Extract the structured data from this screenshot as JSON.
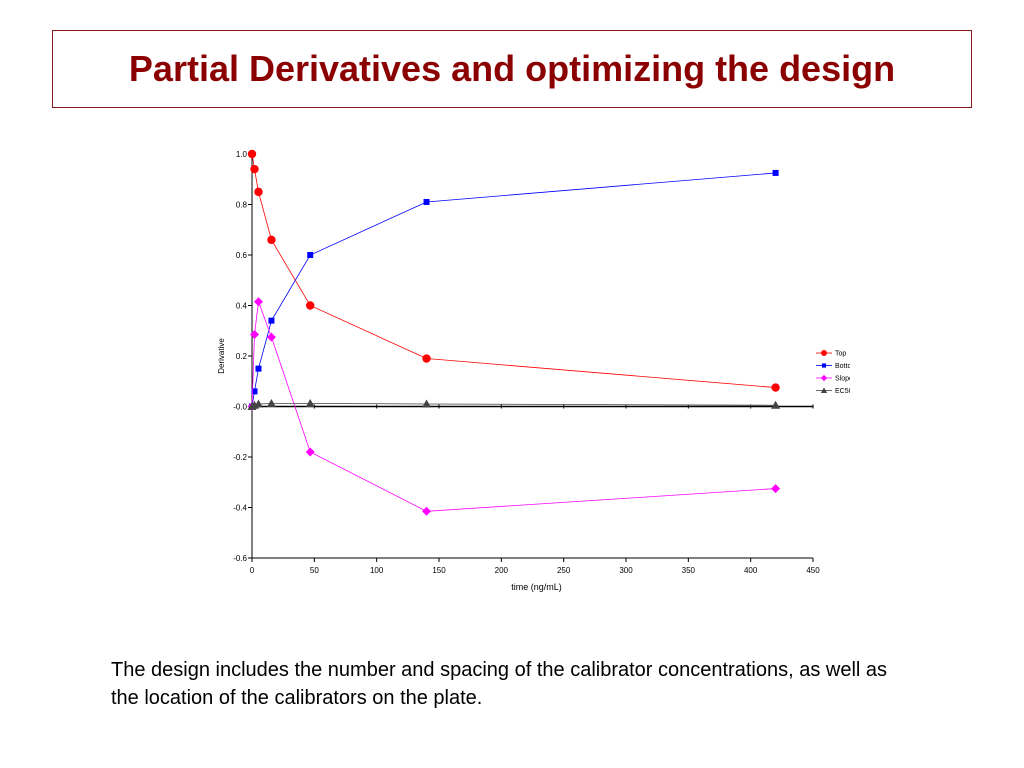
{
  "slide": {
    "title": "Partial Derivatives and optimizing the design",
    "caption": "The design includes the number and spacing of the calibrator concentrations, as well as the location of the calibrators on the plate."
  },
  "chart_data": {
    "type": "line",
    "title": "",
    "xlabel": "time (ng/mL)",
    "ylabel": "Derivative",
    "xlim": [
      0,
      450
    ],
    "ylim": [
      -0.6,
      1.0
    ],
    "xticks": [
      0,
      50,
      100,
      150,
      200,
      250,
      300,
      350,
      400,
      450
    ],
    "xtick_labels": [
      "0",
      "50",
      "100",
      "150",
      "200",
      "250",
      "300",
      "350",
      "400",
      "450"
    ],
    "yticks": [
      1.0,
      0.8,
      0.6,
      0.4,
      0.2,
      0.0,
      -0.2,
      -0.4,
      -0.6
    ],
    "ytick_labels": [
      "1.0",
      "0.8",
      "0.6",
      "0.4",
      "0.2",
      "-0.0",
      "-0.2",
      "-0.4",
      "-0.6"
    ],
    "grid": false,
    "legend_position": "right",
    "x": [
      0,
      2,
      5.2,
      15.6,
      46.7,
      140,
      420
    ],
    "series": [
      {
        "name": "Top",
        "color": "#ff0000",
        "marker": "circle",
        "values": [
          1.0,
          0.94,
          0.85,
          0.66,
          0.4,
          0.19,
          0.075
        ]
      },
      {
        "name": "Bottom",
        "color": "#0000ff",
        "marker": "square",
        "values": [
          0.0,
          0.06,
          0.15,
          0.34,
          0.6,
          0.81,
          0.925
        ]
      },
      {
        "name": "Slope",
        "color": "#ff00ff",
        "marker": "diamond",
        "values": [
          0.0,
          0.285,
          0.415,
          0.275,
          -0.18,
          -0.415,
          -0.325
        ]
      },
      {
        "name": "EC50",
        "color": "#444444",
        "marker": "triangle",
        "values": [
          0.0,
          0.005,
          0.01,
          0.012,
          0.012,
          0.01,
          0.005
        ]
      }
    ]
  }
}
